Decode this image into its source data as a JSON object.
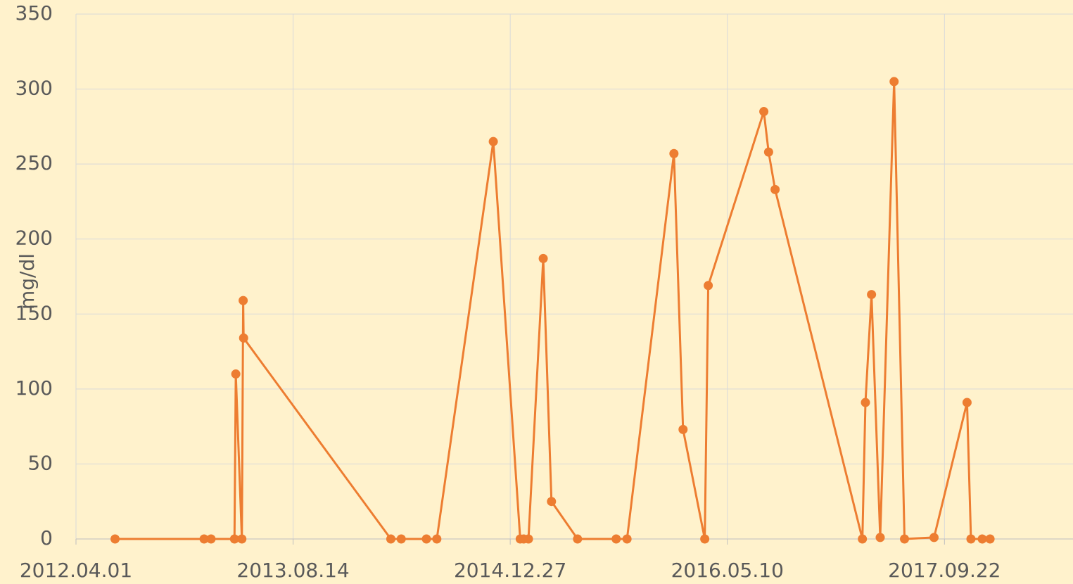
{
  "chart_data": {
    "type": "line",
    "y_label": "mg/dl",
    "x": [
      "2012.06.30",
      "2013.01.21",
      "2013.02.06",
      "2013.04.01",
      "2013.04.04",
      "2013.04.18",
      "2013.04.21",
      "2013.04.22",
      "2014.03.27",
      "2014.04.20",
      "2014.06.17",
      "2014.07.11",
      "2014.11.18",
      "2015.01.19",
      "2015.01.27",
      "2015.02.07",
      "2015.03.13",
      "2015.04.01",
      "2015.05.31",
      "2015.08.28",
      "2015.09.22",
      "2016.01.08",
      "2016.01.29",
      "2016.03.19",
      "2016.03.27",
      "2016.08.02",
      "2016.08.13",
      "2016.08.28",
      "2017.03.17",
      "2017.03.24",
      "2017.04.07",
      "2017.04.27",
      "2017.05.29",
      "2017.06.22",
      "2017.08.29",
      "2017.11.13",
      "2017.11.22",
      "2017.12.18",
      "2018.01.05"
    ],
    "series": [
      {
        "name": "mg/dl",
        "color": "#ed7d31",
        "values": [
          0,
          0,
          0,
          0,
          110,
          0,
          159,
          134,
          0,
          0,
          0,
          0,
          265,
          0,
          0,
          0,
          187,
          25,
          0,
          0,
          0,
          257,
          73,
          0,
          169,
          285,
          258,
          233,
          0,
          91,
          163,
          1,
          305,
          0,
          1,
          91,
          0,
          0,
          0
        ]
      }
    ],
    "xlim": [
      "2012.04.01",
      "2018.07.15"
    ],
    "xticks": [
      "2012.04.01",
      "2013.08.14",
      "2014.12.27",
      "2016.05.10",
      "2017.09.22"
    ],
    "ylim": [
      0,
      350
    ],
    "yticks": [
      0,
      50,
      100,
      150,
      200,
      250,
      300,
      350
    ],
    "grid": true
  }
}
